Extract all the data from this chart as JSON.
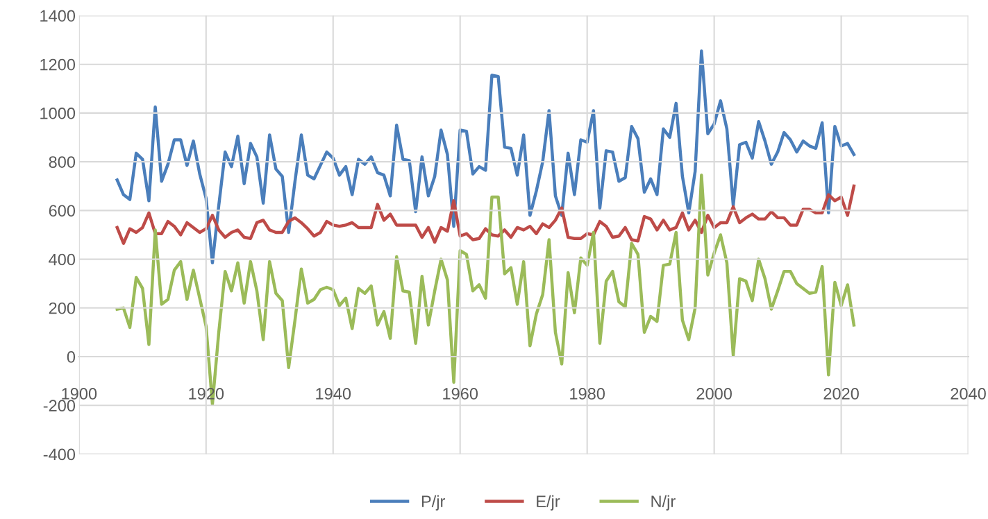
{
  "chart_data": {
    "type": "line",
    "x": [
      1906,
      1907,
      1908,
      1909,
      1910,
      1911,
      1912,
      1913,
      1914,
      1915,
      1916,
      1917,
      1918,
      1919,
      1920,
      1921,
      1922,
      1923,
      1924,
      1925,
      1926,
      1927,
      1928,
      1929,
      1930,
      1931,
      1932,
      1933,
      1934,
      1935,
      1936,
      1937,
      1938,
      1939,
      1940,
      1941,
      1942,
      1943,
      1944,
      1945,
      1946,
      1947,
      1948,
      1949,
      1950,
      1951,
      1952,
      1953,
      1954,
      1955,
      1956,
      1957,
      1958,
      1959,
      1960,
      1961,
      1962,
      1963,
      1964,
      1965,
      1966,
      1967,
      1968,
      1969,
      1970,
      1971,
      1972,
      1973,
      1974,
      1975,
      1976,
      1977,
      1978,
      1979,
      1980,
      1981,
      1982,
      1983,
      1984,
      1985,
      1986,
      1987,
      1988,
      1989,
      1990,
      1991,
      1992,
      1993,
      1994,
      1995,
      1996,
      1997,
      1998,
      1999,
      2000,
      2001,
      2002,
      2003,
      2004,
      2005,
      2006,
      2007,
      2008,
      2009,
      2010,
      2011,
      2012,
      2013,
      2014,
      2015,
      2016,
      2017,
      2018,
      2019,
      2020,
      2021,
      2022
    ],
    "series": [
      {
        "name": "P/jr",
        "color": "#4a7ebb",
        "values": [
          725,
          665,
          645,
          835,
          810,
          640,
          1025,
          720,
          790,
          890,
          890,
          785,
          885,
          750,
          650,
          385,
          620,
          840,
          780,
          905,
          710,
          875,
          820,
          630,
          910,
          770,
          740,
          510,
          720,
          910,
          745,
          730,
          785,
          840,
          815,
          745,
          780,
          665,
          810,
          790,
          820,
          755,
          745,
          660,
          950,
          810,
          805,
          595,
          820,
          660,
          740,
          930,
          830,
          535,
          930,
          925,
          750,
          780,
          765,
          1155,
          1150,
          860,
          855,
          745,
          910,
          580,
          680,
          800,
          1010,
          660,
          580,
          835,
          665,
          890,
          880,
          1010,
          610,
          845,
          840,
          720,
          735,
          945,
          895,
          675,
          730,
          665,
          935,
          900,
          1040,
          740,
          590,
          760,
          1255,
          915,
          955,
          1050,
          935,
          620,
          870,
          880,
          815,
          965,
          885,
          790,
          840,
          920,
          890,
          840,
          885,
          865,
          855,
          960,
          590,
          945,
          865,
          875,
          830
        ]
      },
      {
        "name": "E/jr",
        "color": "#be4b48",
        "values": [
          530,
          465,
          525,
          510,
          530,
          590,
          505,
          505,
          555,
          535,
          500,
          550,
          530,
          510,
          525,
          580,
          520,
          490,
          510,
          520,
          490,
          485,
          550,
          560,
          520,
          510,
          510,
          555,
          570,
          550,
          525,
          495,
          510,
          555,
          540,
          535,
          540,
          550,
          530,
          530,
          530,
          625,
          560,
          585,
          540,
          540,
          540,
          540,
          490,
          530,
          470,
          530,
          515,
          640,
          495,
          505,
          480,
          485,
          525,
          500,
          495,
          520,
          490,
          530,
          520,
          535,
          505,
          545,
          530,
          560,
          610,
          490,
          485,
          485,
          505,
          500,
          555,
          535,
          490,
          495,
          530,
          480,
          475,
          575,
          565,
          520,
          560,
          520,
          530,
          590,
          520,
          560,
          510,
          580,
          530,
          550,
          550,
          615,
          550,
          570,
          585,
          565,
          565,
          595,
          570,
          570,
          540,
          540,
          605,
          605,
          590,
          590,
          665,
          640,
          655,
          580,
          700
        ]
      },
      {
        "name": "N/jr",
        "color": "#9bbb59",
        "values": [
          195,
          200,
          120,
          325,
          280,
          50,
          520,
          215,
          235,
          355,
          390,
          235,
          355,
          240,
          125,
          -195,
          100,
          350,
          270,
          385,
          220,
          390,
          270,
          70,
          390,
          260,
          230,
          -45,
          150,
          360,
          220,
          235,
          275,
          285,
          275,
          210,
          240,
          115,
          280,
          260,
          290,
          130,
          185,
          75,
          410,
          270,
          265,
          55,
          330,
          130,
          270,
          400,
          315,
          -105,
          435,
          420,
          270,
          295,
          240,
          655,
          655,
          340,
          365,
          215,
          390,
          45,
          175,
          255,
          480,
          100,
          -30,
          345,
          180,
          405,
          375,
          510,
          55,
          310,
          350,
          225,
          205,
          465,
          420,
          100,
          165,
          145,
          375,
          380,
          510,
          150,
          70,
          200,
          745,
          335,
          425,
          500,
          385,
          5,
          320,
          310,
          230,
          400,
          320,
          195,
          270,
          350,
          350,
          300,
          280,
          260,
          265,
          370,
          -75,
          305,
          210,
          295,
          130
        ]
      }
    ],
    "xlim": [
      1900,
      2040
    ],
    "xticks": [
      1900,
      1920,
      1940,
      1960,
      1980,
      2000,
      2020,
      2040
    ],
    "ylim": [
      -400,
      1400
    ],
    "yticks": [
      -400,
      -200,
      0,
      200,
      400,
      600,
      800,
      1000,
      1200,
      1400
    ],
    "grid": true,
    "legend": "bottom",
    "marker": "none",
    "line_style": "solid"
  }
}
